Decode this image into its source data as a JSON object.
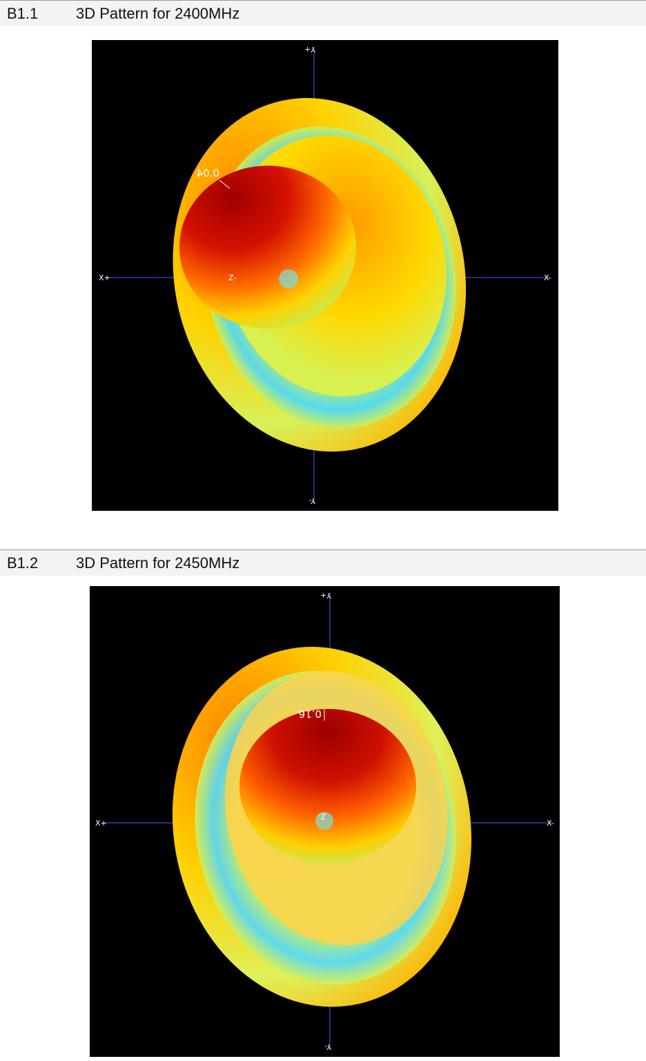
{
  "sections": [
    {
      "number": "B1.1",
      "title": "3D Pattern for 2400MHz",
      "plot": {
        "axis_labels": {
          "y_pos": "Y+",
          "y_neg": "Y-",
          "x_pos": "X+",
          "x_neg": "X-",
          "z": "Z-"
        },
        "peak_label": "0.04"
      }
    },
    {
      "number": "B1.2",
      "title": "3D Pattern for 2450MHz",
      "plot": {
        "axis_labels": {
          "y_pos": "Y+",
          "y_neg": "Y-",
          "x_pos": "X+",
          "x_neg": "X-",
          "z": "Z-"
        },
        "peak_label": "0.16"
      }
    }
  ],
  "colors": {
    "background": "#000000",
    "axis_line": "#5555ff",
    "pattern_max": "#a00000",
    "pattern_high": "#ff4a00",
    "pattern_mid": "#ffe600",
    "pattern_low": "#b6f060",
    "pattern_min": "#38d8ff"
  }
}
